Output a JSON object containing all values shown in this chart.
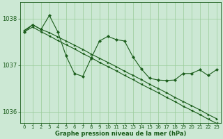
{
  "bg_color": "#cce8d4",
  "grid_color": "#99cc99",
  "line_color": "#1a5c1a",
  "xlabel": "Graphe pression niveau de la mer (hPa)",
  "ylim": [
    1035.75,
    1038.35
  ],
  "xlim": [
    -0.5,
    23.5
  ],
  "yticks": [
    1036,
    1037,
    1038
  ],
  "xticks": [
    0,
    1,
    2,
    3,
    4,
    5,
    6,
    7,
    8,
    9,
    10,
    11,
    12,
    13,
    14,
    15,
    16,
    17,
    18,
    19,
    20,
    21,
    22,
    23
  ],
  "series1": [
    1037.72,
    1037.82,
    1037.72,
    1037.63,
    1037.53,
    1037.44,
    1037.35,
    1037.25,
    1037.16,
    1037.06,
    1036.97,
    1036.88,
    1036.78,
    1036.69,
    1036.59,
    1036.5,
    1036.41,
    1036.31,
    1036.22,
    1036.12,
    1036.03,
    1035.94,
    1035.84,
    1035.75
  ],
  "series2": [
    1037.75,
    1037.87,
    1037.77,
    1037.7,
    1037.61,
    1037.52,
    1037.43,
    1037.34,
    1037.24,
    1037.15,
    1037.06,
    1036.97,
    1036.87,
    1036.78,
    1036.69,
    1036.59,
    1036.5,
    1036.41,
    1036.31,
    1036.22,
    1036.13,
    1036.04,
    1035.94,
    1035.85
  ],
  "series3": [
    1037.72,
    1037.87,
    1037.77,
    1038.07,
    1037.72,
    1037.2,
    1036.82,
    1036.76,
    1037.15,
    1037.52,
    1037.62,
    1037.55,
    1037.52,
    1037.18,
    1036.92,
    1036.72,
    1036.68,
    1036.67,
    1036.68,
    1036.82,
    1036.82,
    1036.9,
    1036.78,
    1036.9
  ]
}
